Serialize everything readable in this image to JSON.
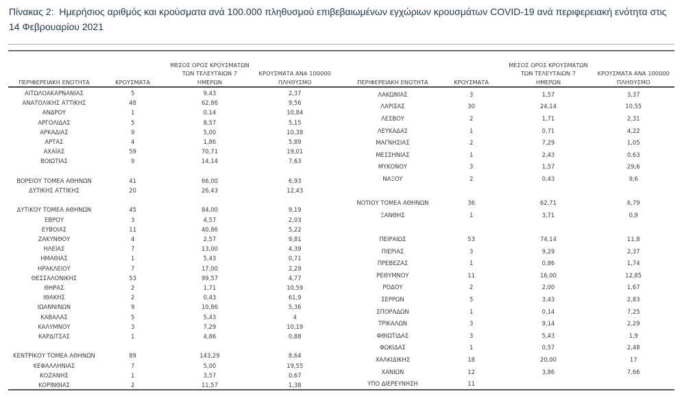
{
  "title": "Πίνακας 2:  Ημερήσιος αριθμός και κρούσματα ανά 100.000 πληθυσμού επιβεβαιωμένων εγχώριων κρουσμάτων COVID-19 ανά περιφερειακή ενότητα στις 14 Φεβρουαρίου 2021",
  "columns": [
    [
      "ΠΕΡΙΦΕΡΕΙΑΚΗ ΕΝΟΤΗΤΑ"
    ],
    [
      "ΚΡΟΥΣΜΑΤΑ"
    ],
    [
      "ΜΕΣΟΣ ΟΡΟΣ ΚΡΟΥΣΜΑΤΩΝ",
      "ΤΩΝ ΤΕΛΕΥΤΑΙΩΝ 7",
      "ΗΜΕΡΩΝ"
    ],
    [
      "ΚΡΟΥΣΜΑΤΑ ΑΝΑ 100000",
      "ΠΛΗΘΥΣΜΟ"
    ]
  ],
  "tables": {
    "left": {
      "rows": [
        [
          "ΑΙΤΩΛΟΑΚΑΡΝΑΝΙΑΣ",
          "5",
          "9,43",
          "2,37"
        ],
        [
          "ΑΝΑΤΟΛΙΚΗΣ ΑΤΤΙΚΗΣ",
          "48",
          "62,86",
          "9,56"
        ],
        [
          "ΑΝΔΡΟΥ",
          "1",
          "0,14",
          "10,84"
        ],
        [
          "ΑΡΓΟΛΙΔΑΣ",
          "5",
          "8,57",
          "5,15"
        ],
        [
          "ΑΡΚΑΔΙΑΣ",
          "9",
          "5,00",
          "10,38"
        ],
        [
          "ΑΡΤΑΣ",
          "4",
          "1,86",
          "5,89"
        ],
        [
          "ΑΧΑΪΑΣ",
          "59",
          "70,71",
          "19,01"
        ],
        [
          "ΒΟΙΩΤΙΑΣ",
          "9",
          "14,14",
          "7,63"
        ],
        [
          "",
          "",
          "",
          ""
        ],
        [
          "ΒΟΡΕΙΟΥ ΤΟΜΕΑ ΑΘΗΝΩΝ",
          "41",
          "66,00",
          "6,93"
        ],
        [
          "ΔΥΤΙΚΗΣ ΑΤΤΙΚΗΣ",
          "20",
          "26,43",
          "12,43"
        ],
        [
          "",
          "",
          "",
          ""
        ],
        [
          "ΔΥΤΙΚΟΥ ΤΟΜΕΑ ΑΘΗΝΩΝ",
          "45",
          "84,00",
          "9,19"
        ],
        [
          "ΕΒΡΟΥ",
          "3",
          "4,57",
          "2,03"
        ],
        [
          "ΕΥΒΟΙΑΣ",
          "11",
          "40,86",
          "5,22"
        ],
        [
          "ΖΑΚΥΝΘΟΥ",
          "4",
          "2,57",
          "9,81"
        ],
        [
          "ΗΛΕΙΑΣ",
          "7",
          "13,00",
          "4,39"
        ],
        [
          "ΗΜΑΘΙΑΣ",
          "1",
          "5,43",
          "0,71"
        ],
        [
          "ΗΡΑΚΛΕΙΟΥ",
          "7",
          "17,00",
          "2,29"
        ],
        [
          "ΘΕΣΣΑΛΟΝΙΚΗΣ",
          "53",
          "99,57",
          "4,77"
        ],
        [
          "ΘΗΡΑΣ",
          "2",
          "1,71",
          "10,59"
        ],
        [
          "ΙΘΑΚΗΣ",
          "2",
          "0,43",
          "61,9"
        ],
        [
          "ΙΩΑΝΝΙΝΩΝ",
          "9",
          "10,86",
          "5,36"
        ],
        [
          "ΚΑΒΑΛΑΣ",
          "5",
          "5,43",
          "4"
        ],
        [
          "ΚΑΛΥΜΝΟΥ",
          "3",
          "7,29",
          "10,19"
        ],
        [
          "ΚΑΡΔΙΤΣΑΣ",
          "1",
          "4,86",
          "0,88"
        ],
        [
          "",
          "",
          "",
          ""
        ],
        [
          "ΚΕΝΤΡΙΚΟΥ ΤΟΜΕΑ ΑΘΗΝΩΝ",
          "89",
          "143,29",
          "8,64"
        ],
        [
          "ΚΕΦΑΛΛΗΝΙΑΣ",
          "7",
          "5,00",
          "19,55"
        ],
        [
          "ΚΟΖΑΝΗΣ",
          "1",
          "3,57",
          "0,67"
        ],
        [
          "ΚΟΡΙΝΘΙΑΣ",
          "2",
          "11,57",
          "1,38"
        ]
      ]
    },
    "right": {
      "rows": [
        [
          "ΛΑΚΩΝΙΑΣ",
          "3",
          "1,57",
          "3,37"
        ],
        [
          "ΛΑΡΙΣΑΣ",
          "30",
          "24,14",
          "10,55"
        ],
        [
          "ΛΕΣΒΟΥ",
          "2",
          "1,71",
          "2,31"
        ],
        [
          "ΛΕΥΚΑΔΑΣ",
          "1",
          "0,71",
          "4,22"
        ],
        [
          "ΜΑΓΝΗΣΙΑΣ",
          "2",
          "7,29",
          "1,05"
        ],
        [
          "ΜΕΣΣΗΝΙΑΣ",
          "1",
          "2,43",
          "0,63"
        ],
        [
          "ΜΥΚΟΝΟΥ",
          "3",
          "1,57",
          "29,6"
        ],
        [
          "ΝΑΞΟΥ",
          "2",
          "0,43",
          "9,6"
        ],
        [
          "",
          "",
          "",
          ""
        ],
        [
          "ΝΟΤΙΟΥ ΤΟΜΕΑ ΑΘΗΝΩΝ",
          "36",
          "62,71",
          "6,79"
        ],
        [
          "ΞΑΝΘΗΣ",
          "1",
          "3,71",
          "0,9"
        ],
        [
          "",
          "",
          "",
          ""
        ],
        [
          "ΠΕΙΡΑΙΩΣ",
          "53",
          "74,14",
          "11,8"
        ],
        [
          "ΠΙΕΡΙΑΣ",
          "3",
          "9,29",
          "2,37"
        ],
        [
          "ΠΡΕΒΕΖΑΣ",
          "1",
          "0,86",
          "1,74"
        ],
        [
          "ΡΕΘΥΜΝΟΥ",
          "11",
          "16,00",
          "12,85"
        ],
        [
          "ΡΟΔΟΥ",
          "2",
          "2,00",
          "1,67"
        ],
        [
          "ΣΕΡΡΩΝ",
          "5",
          "3,43",
          "2,83"
        ],
        [
          "ΣΠΟΡΑΔΩΝ",
          "1",
          "0,14",
          "7,25"
        ],
        [
          "ΤΡΙΚΑΛΩΝ",
          "3",
          "9,14",
          "2,29"
        ],
        [
          "ΦΘΙΩΤΙΔΑΣ",
          "3",
          "5,43",
          "1,9"
        ],
        [
          "ΦΩΚΙΔΑΣ",
          "1",
          "0,57",
          "2,48"
        ],
        [
          "ΧΑΛΚΙΔΙΚΗΣ",
          "18",
          "20,00",
          "17"
        ],
        [
          "ΧΑΝΙΩΝ",
          "12",
          "3,86",
          "7,66"
        ],
        [
          "ΥΠΟ ΔΙΕΡΕΥΝΗΣΗ",
          "11",
          "",
          ""
        ]
      ]
    }
  },
  "colors": {
    "title_text": "#21374d",
    "body_text": "#3a3a3a",
    "rule_light_gray": "#a6a6a6",
    "rule_dark_gray": "#555555"
  }
}
